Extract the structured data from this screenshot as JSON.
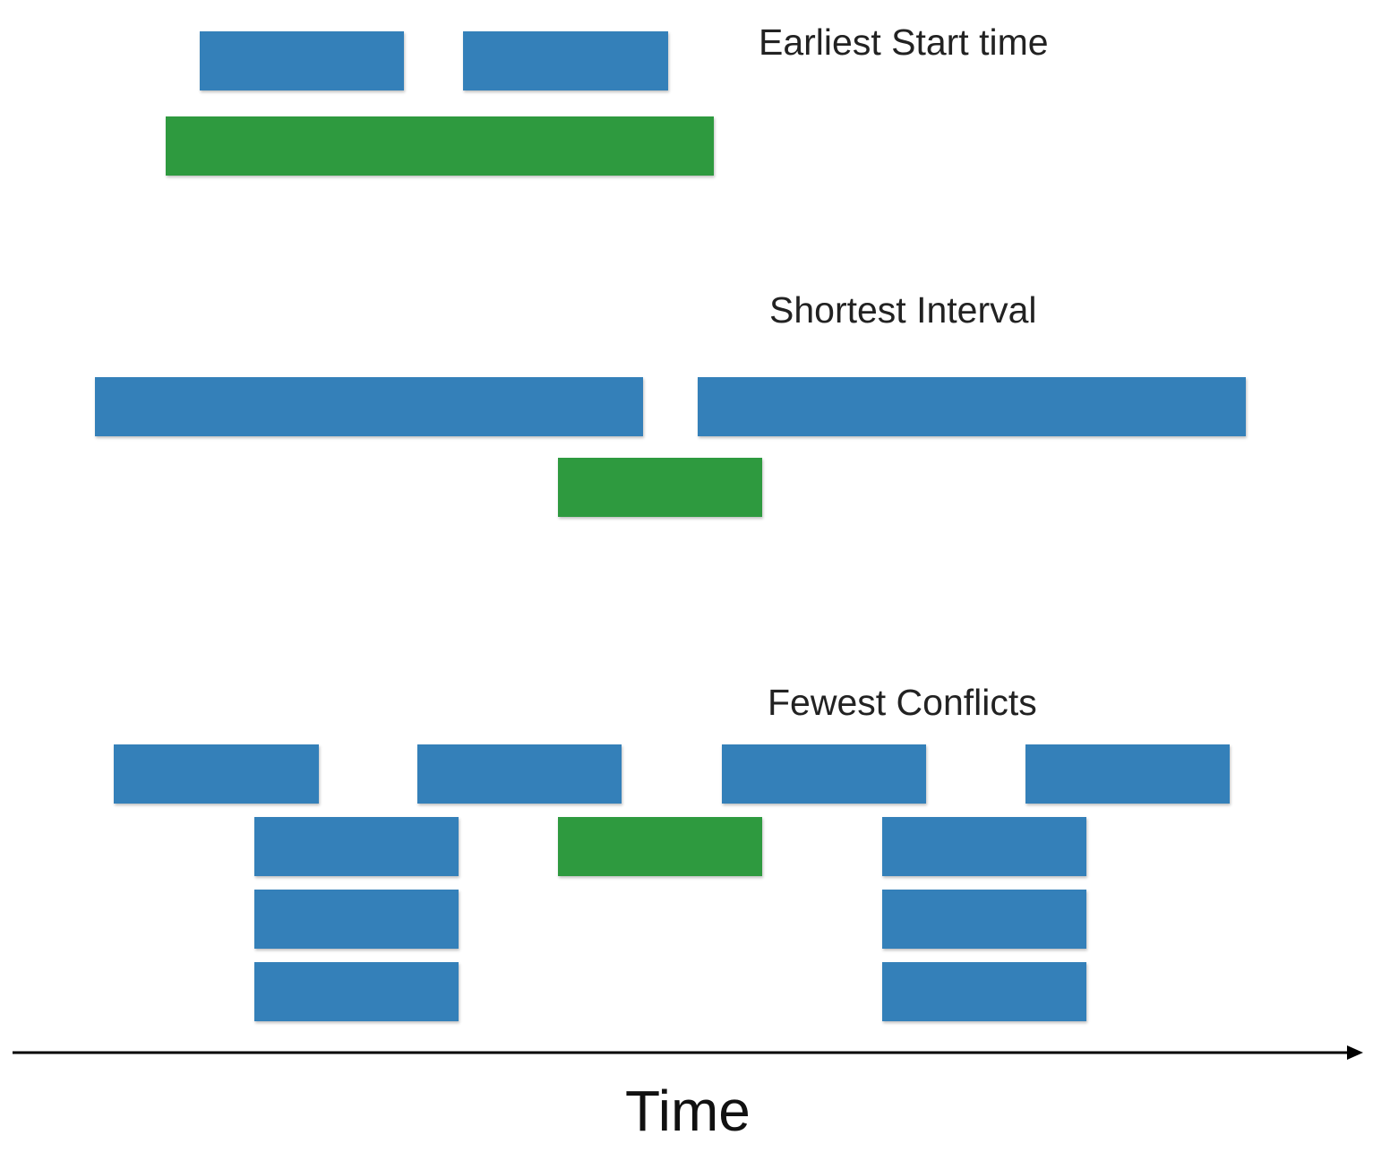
{
  "colors": {
    "rejected": "#3480b9",
    "selected": "#2e9a3f",
    "axis": "#000000"
  },
  "groups": [
    {
      "title": "Earliest Start time",
      "intervals": [
        {
          "start": 223,
          "end": 451,
          "lane": 0,
          "kind": "rejected"
        },
        {
          "start": 517,
          "end": 746,
          "lane": 0,
          "kind": "rejected"
        },
        {
          "start": 185,
          "end": 797,
          "lane": 1,
          "kind": "selected"
        }
      ]
    },
    {
      "title": "Shortest Interval",
      "intervals": [
        {
          "start": 106,
          "end": 718,
          "lane": 0,
          "kind": "rejected"
        },
        {
          "start": 779,
          "end": 1391,
          "lane": 0,
          "kind": "rejected"
        },
        {
          "start": 623,
          "end": 851,
          "lane": 1,
          "kind": "selected"
        }
      ]
    },
    {
      "title": "Fewest Conflicts",
      "intervals": [
        {
          "start": 127,
          "end": 356,
          "lane": 0,
          "kind": "rejected"
        },
        {
          "start": 466,
          "end": 694,
          "lane": 0,
          "kind": "rejected"
        },
        {
          "start": 806,
          "end": 1034,
          "lane": 0,
          "kind": "rejected"
        },
        {
          "start": 1145,
          "end": 1373,
          "lane": 0,
          "kind": "rejected"
        },
        {
          "start": 284,
          "end": 512,
          "lane": 1,
          "kind": "rejected"
        },
        {
          "start": 623,
          "end": 851,
          "lane": 1,
          "kind": "selected"
        },
        {
          "start": 985,
          "end": 1213,
          "lane": 1,
          "kind": "rejected"
        },
        {
          "start": 284,
          "end": 512,
          "lane": 2,
          "kind": "rejected"
        },
        {
          "start": 985,
          "end": 1213,
          "lane": 2,
          "kind": "rejected"
        },
        {
          "start": 284,
          "end": 512,
          "lane": 3,
          "kind": "rejected"
        },
        {
          "start": 985,
          "end": 1213,
          "lane": 3,
          "kind": "rejected"
        }
      ]
    }
  ],
  "axis": {
    "label": "Time"
  }
}
